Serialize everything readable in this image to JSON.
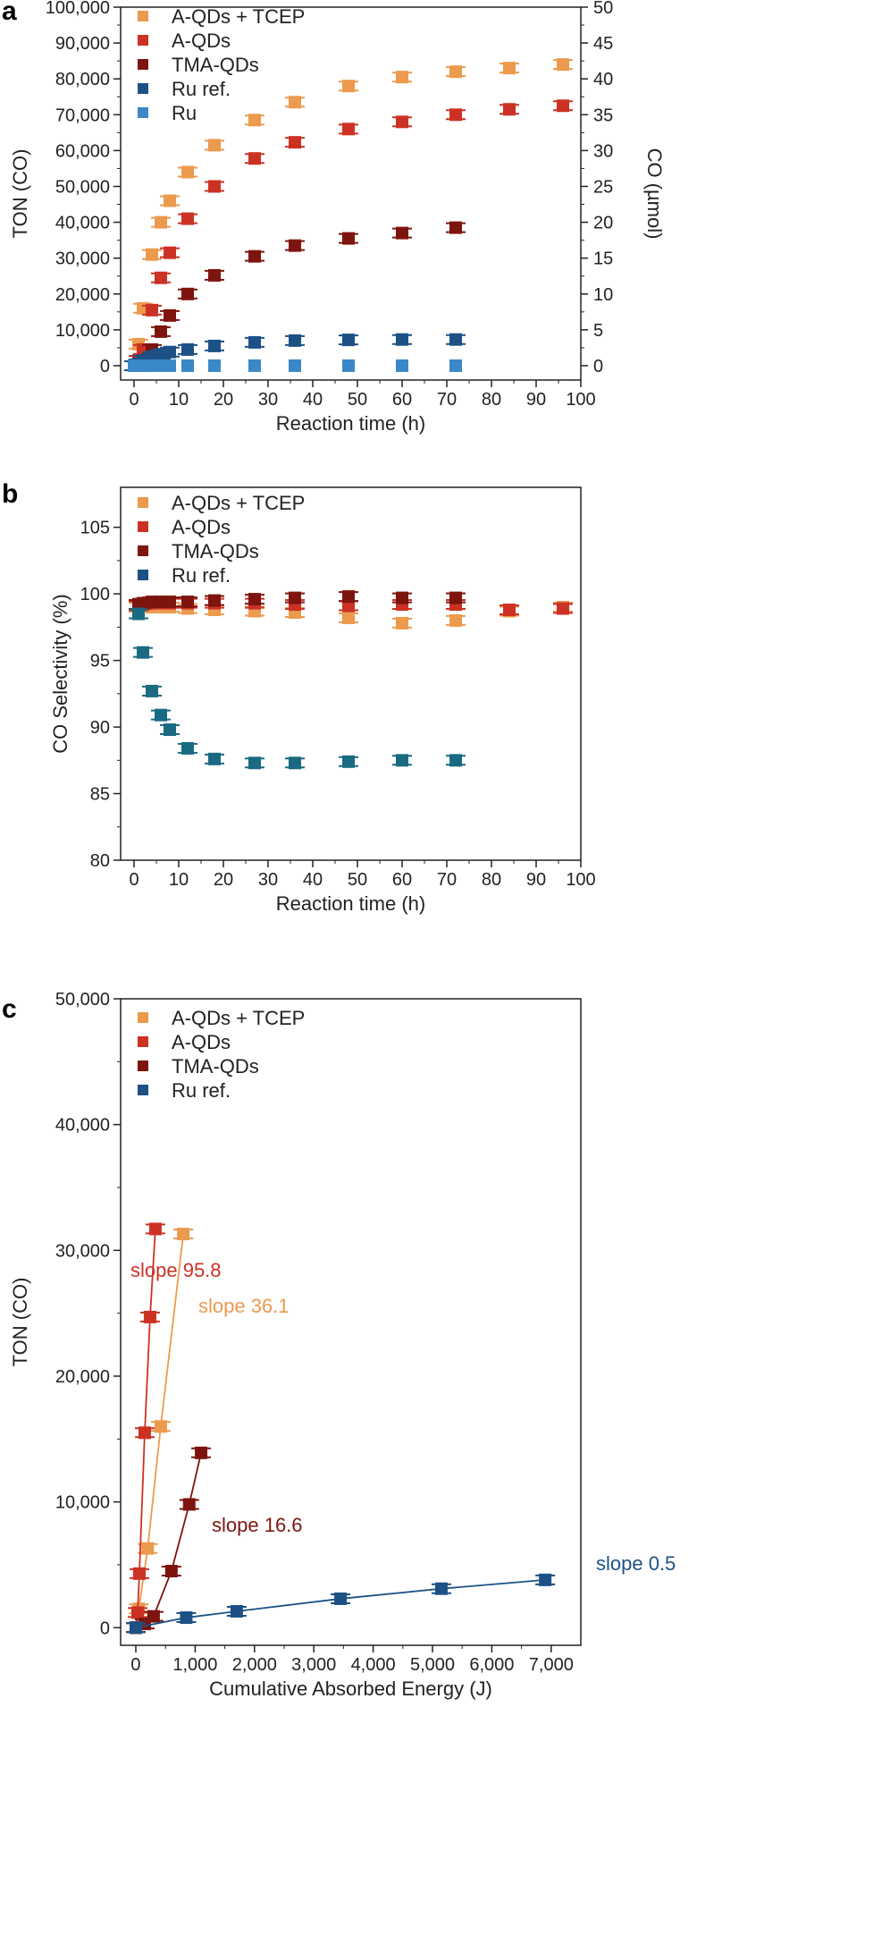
{
  "colors": {
    "tcep": "#eb9a4e",
    "aqd": "#cc3224",
    "tma": "#7d150e",
    "ruref": "#1d5185",
    "ru": "#3a88c8",
    "ruref_b": "#1a6a82"
  },
  "chart_data": [
    {
      "panel": "a",
      "type": "scatter",
      "xlabel": "Reaction time (h)",
      "ylabel": "TON (CO)",
      "y2label": "CO (µmol)",
      "xlim": [
        -3,
        100
      ],
      "ylim": [
        -4000,
        100000
      ],
      "y2lim": [
        -2,
        50
      ],
      "xticks": [
        0,
        10,
        20,
        30,
        40,
        50,
        60,
        70,
        80,
        90,
        100
      ],
      "yticks": [
        0,
        10000,
        20000,
        30000,
        40000,
        50000,
        60000,
        70000,
        80000,
        90000,
        100000
      ],
      "yticklabels": [
        "0",
        "10,000",
        "20,000",
        "30,000",
        "40,000",
        "50,000",
        "60,000",
        "70,000",
        "80,000",
        "90,000",
        "100,000"
      ],
      "y2ticks": [
        0,
        5,
        10,
        15,
        20,
        25,
        30,
        35,
        40,
        45,
        50
      ],
      "legend_position": "top-left",
      "series": [
        {
          "name": "A-QDs + TCEP",
          "color_key": "tcep",
          "x": [
            0,
            1,
            2,
            4,
            6,
            8,
            12,
            18,
            27,
            36,
            48,
            60,
            72,
            84,
            96
          ],
          "y": [
            0,
            6000,
            16000,
            31000,
            40000,
            46000,
            54000,
            61500,
            68500,
            73500,
            78000,
            80500,
            82000,
            83000,
            84000
          ]
        },
        {
          "name": "A-QDs",
          "color_key": "aqd",
          "x": [
            0,
            1,
            2,
            4,
            6,
            8,
            12,
            18,
            27,
            36,
            48,
            60,
            72,
            84,
            96
          ],
          "y": [
            0,
            1500,
            4500,
            15500,
            24500,
            31500,
            41000,
            50000,
            57800,
            62300,
            66000,
            68000,
            70000,
            71500,
            72500
          ]
        },
        {
          "name": "TMA-QDs",
          "color_key": "tma",
          "x": [
            0,
            1,
            2,
            4,
            6,
            8,
            12,
            18,
            27,
            36,
            48,
            60,
            72
          ],
          "y": [
            0,
            500,
            1500,
            4500,
            9500,
            14000,
            20000,
            25200,
            30500,
            33500,
            35500,
            37000,
            38500
          ]
        },
        {
          "name": "Ru ref.",
          "color_key": "ruref",
          "x": [
            0,
            1,
            2,
            4,
            6,
            8,
            12,
            18,
            27,
            36,
            48,
            60,
            72
          ],
          "y": [
            0,
            500,
            1500,
            2500,
            3200,
            3800,
            4500,
            5500,
            6500,
            7000,
            7200,
            7300,
            7300
          ]
        },
        {
          "name": "Ru",
          "color_key": "ru",
          "x": [
            0,
            1,
            2,
            4,
            6,
            8,
            12,
            18,
            27,
            36,
            48,
            60,
            72
          ],
          "y": [
            0,
            0,
            0,
            0,
            0,
            0,
            0,
            0,
            0,
            0,
            0,
            0,
            0
          ]
        }
      ]
    },
    {
      "panel": "b",
      "type": "scatter",
      "xlabel": "Reaction time (h)",
      "ylabel": "CO Selectivity (%)",
      "xlim": [
        -3,
        100
      ],
      "ylim": [
        80,
        108
      ],
      "xticks": [
        0,
        10,
        20,
        30,
        40,
        50,
        60,
        70,
        80,
        90,
        100
      ],
      "yticks": [
        80,
        85,
        90,
        95,
        100,
        105
      ],
      "yticklabels": [
        "80",
        "85",
        "90",
        "95",
        "100",
        "105"
      ],
      "legend_position": "top-left",
      "series": [
        {
          "name": "A-QDs + TCEP",
          "color_key": "tcep",
          "x": [
            1,
            2,
            4,
            6,
            8,
            12,
            18,
            27,
            36,
            48,
            60,
            72,
            84,
            96
          ],
          "y": [
            99.0,
            99.1,
            99.0,
            99.0,
            99.0,
            98.9,
            98.8,
            98.7,
            98.6,
            98.2,
            97.8,
            98.0,
            98.7,
            99.0
          ]
        },
        {
          "name": "A-QDs",
          "color_key": "aqd",
          "x": [
            1,
            2,
            4,
            6,
            8,
            12,
            18,
            27,
            36,
            48,
            60,
            72,
            84,
            96
          ],
          "y": [
            99.1,
            99.2,
            99.3,
            99.3,
            99.3,
            99.3,
            99.3,
            99.3,
            99.2,
            99.1,
            99.2,
            99.2,
            98.8,
            98.9
          ]
        },
        {
          "name": "TMA-QDs",
          "color_key": "tma",
          "x": [
            1,
            2,
            4,
            6,
            8,
            12,
            18,
            27,
            36,
            48,
            60,
            72
          ],
          "y": [
            99.2,
            99.3,
            99.4,
            99.4,
            99.4,
            99.4,
            99.5,
            99.6,
            99.7,
            99.8,
            99.7,
            99.7
          ]
        },
        {
          "name": "Ru ref.",
          "color_key": "ruref_b",
          "legend_color_key": "ruref",
          "x": [
            1,
            2,
            4,
            6,
            8,
            12,
            18,
            27,
            36,
            48,
            60,
            72
          ],
          "y": [
            98.5,
            95.6,
            92.7,
            90.9,
            89.8,
            88.4,
            87.6,
            87.3,
            87.3,
            87.4,
            87.5,
            87.5
          ]
        }
      ]
    },
    {
      "panel": "c",
      "type": "line",
      "xlabel": "Cumulative Absorbed Energy (J)",
      "ylabel": "TON (CO)",
      "xlim": [
        -256,
        7500
      ],
      "ylim": [
        -1400,
        50000
      ],
      "xticks": [
        0,
        1000,
        2000,
        3000,
        4000,
        5000,
        6000,
        7000
      ],
      "xticklabels": [
        "0",
        "1,000",
        "2,000",
        "3,000",
        "4,000",
        "5,000",
        "6,000",
        "7,000"
      ],
      "yticks": [
        0,
        10000,
        20000,
        30000,
        40000,
        50000
      ],
      "yticklabels": [
        "0",
        "10,000",
        "20,000",
        "30,000",
        "40,000",
        "50,000"
      ],
      "legend_position": "top-left",
      "series": [
        {
          "name": "A-QDs + TCEP",
          "color_key": "tcep",
          "x": [
            0,
            50,
            200,
            420,
            800
          ],
          "y": [
            0,
            1500,
            6300,
            16000,
            31300
          ],
          "annotation": "slope 36.1"
        },
        {
          "name": "A-QDs",
          "color_key": "aqd",
          "x": [
            0,
            30,
            60,
            150,
            240,
            330
          ],
          "y": [
            0,
            1200,
            4300,
            15500,
            24700,
            31700
          ],
          "annotation": "slope 95.8"
        },
        {
          "name": "TMA-QDs",
          "color_key": "tma",
          "x": [
            0,
            150,
            300,
            600,
            900,
            1100
          ],
          "y": [
            0,
            300,
            900,
            4500,
            9800,
            13900
          ],
          "annotation": "slope 16.6"
        },
        {
          "name": "Ru ref.",
          "color_key": "ruref",
          "x": [
            0,
            850,
            1700,
            3450,
            5150,
            6900
          ],
          "y": [
            0,
            800,
            1300,
            2300,
            3100,
            3800
          ],
          "annotation": "slope 0.5"
        }
      ]
    }
  ]
}
